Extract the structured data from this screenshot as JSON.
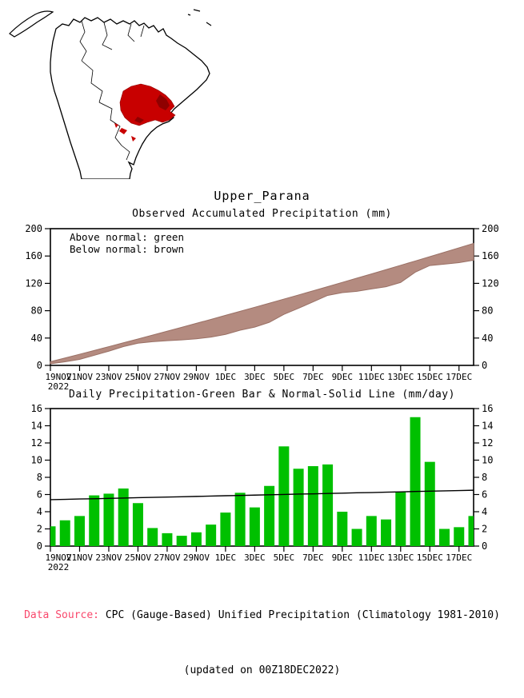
{
  "page_title": "Upper_Parana",
  "map": {
    "highlight_color": "#c80000",
    "highlight_dark_color": "#8f0000",
    "region_name": "Upper_Parana"
  },
  "chart_data": [
    {
      "id": "accumulated",
      "type": "area",
      "title": "Observed Accumulated Precipitation (mm)",
      "legend": [
        "Above normal: green",
        "Below normal: brown"
      ],
      "ylim": [
        0,
        200
      ],
      "y_ticks": [
        0,
        40,
        80,
        120,
        160,
        200
      ],
      "x_tick_labels": [
        "19NOV",
        "21NOV",
        "23NOV",
        "25NOV",
        "27NOV",
        "29NOV",
        "1DEC",
        "3DEC",
        "5DEC",
        "7DEC",
        "9DEC",
        "11DEC",
        "13DEC",
        "15DEC",
        "17DEC"
      ],
      "x_year_label": "2022",
      "x_dates": [
        "19NOV",
        "20NOV",
        "21NOV",
        "22NOV",
        "23NOV",
        "24NOV",
        "25NOV",
        "26NOV",
        "27NOV",
        "28NOV",
        "29NOV",
        "30NOV",
        "1DEC",
        "2DEC",
        "3DEC",
        "4DEC",
        "5DEC",
        "6DEC",
        "7DEC",
        "8DEC",
        "9DEC",
        "10DEC",
        "11DEC",
        "12DEC",
        "13DEC",
        "14DEC",
        "15DEC",
        "16DEC",
        "17DEC",
        "18DEC"
      ],
      "series": [
        {
          "name": "normal_accumulated",
          "values": [
            5.4,
            10.8,
            16.3,
            21.8,
            27.4,
            33.0,
            38.6,
            44.3,
            50.0,
            55.7,
            61.5,
            67.3,
            73.2,
            79.1,
            85.0,
            90.9,
            97.0,
            103.0,
            109.1,
            115.2,
            121.4,
            127.6,
            133.8,
            140.1,
            146.4,
            152.7,
            159.1,
            165.5,
            172.0,
            178.5
          ]
        },
        {
          "name": "observed_accumulated",
          "values": [
            2.3,
            5.3,
            8.8,
            14.7,
            20.8,
            27.5,
            32.5,
            34.6,
            36.1,
            37.3,
            38.9,
            41.4,
            45.3,
            51.5,
            56.0,
            63.0,
            74.6,
            83.6,
            92.9,
            102.4,
            106.4,
            108.4,
            111.9,
            115.0,
            121.3,
            136.3,
            146.1,
            148.1,
            150.3,
            153.8
          ]
        }
      ],
      "band_color": "#b48b80",
      "band_edge_color": "#9a7065",
      "grid": false,
      "legend_position": "top-left-inside"
    },
    {
      "id": "daily",
      "type": "bar",
      "title": "Daily Precipitation-Green Bar & Normal-Solid Line (mm/day)",
      "ylim": [
        0,
        16
      ],
      "y_ticks": [
        0,
        2,
        4,
        6,
        8,
        10,
        12,
        14,
        16
      ],
      "x_tick_labels": [
        "19NOV",
        "21NOV",
        "23NOV",
        "25NOV",
        "27NOV",
        "29NOV",
        "1DEC",
        "3DEC",
        "5DEC",
        "7DEC",
        "9DEC",
        "11DEC",
        "13DEC",
        "15DEC",
        "17DEC"
      ],
      "x_year_label": "2022",
      "x_dates": [
        "19NOV",
        "20NOV",
        "21NOV",
        "22NOV",
        "23NOV",
        "24NOV",
        "25NOV",
        "26NOV",
        "27NOV",
        "28NOV",
        "29NOV",
        "30NOV",
        "1DEC",
        "2DEC",
        "3DEC",
        "4DEC",
        "5DEC",
        "6DEC",
        "7DEC",
        "8DEC",
        "9DEC",
        "10DEC",
        "11DEC",
        "12DEC",
        "13DEC",
        "14DEC",
        "15DEC",
        "16DEC",
        "17DEC",
        "18DEC"
      ],
      "series": [
        {
          "name": "daily_precipitation",
          "values": [
            2.3,
            3.0,
            3.5,
            5.9,
            6.1,
            6.7,
            5.0,
            2.1,
            1.5,
            1.2,
            1.6,
            2.5,
            3.9,
            6.2,
            4.5,
            7.0,
            11.6,
            9.0,
            9.3,
            9.5,
            4.0,
            2.0,
            3.5,
            3.1,
            6.3,
            15.0,
            9.8,
            2.0,
            2.2,
            3.5
          ]
        },
        {
          "name": "normal_daily",
          "values": [
            5.4,
            5.44,
            5.48,
            5.51,
            5.55,
            5.59,
            5.63,
            5.67,
            5.7,
            5.74,
            5.78,
            5.82,
            5.86,
            5.89,
            5.93,
            5.97,
            6.01,
            6.05,
            6.08,
            6.12,
            6.16,
            6.2,
            6.23,
            6.27,
            6.31,
            6.35,
            6.39,
            6.42,
            6.46,
            6.5
          ]
        }
      ],
      "bar_color": "#00c000",
      "line_color": "#000000",
      "grid": false
    }
  ],
  "footer": {
    "data_source_label": "Data Source:",
    "data_source_text": " CPC (Gauge-Based) Unified Precipitation (Climatology 1981-2010)",
    "updated_text": "(updated on 00Z18DEC2022)",
    "data_source_color": "#f9486c"
  }
}
